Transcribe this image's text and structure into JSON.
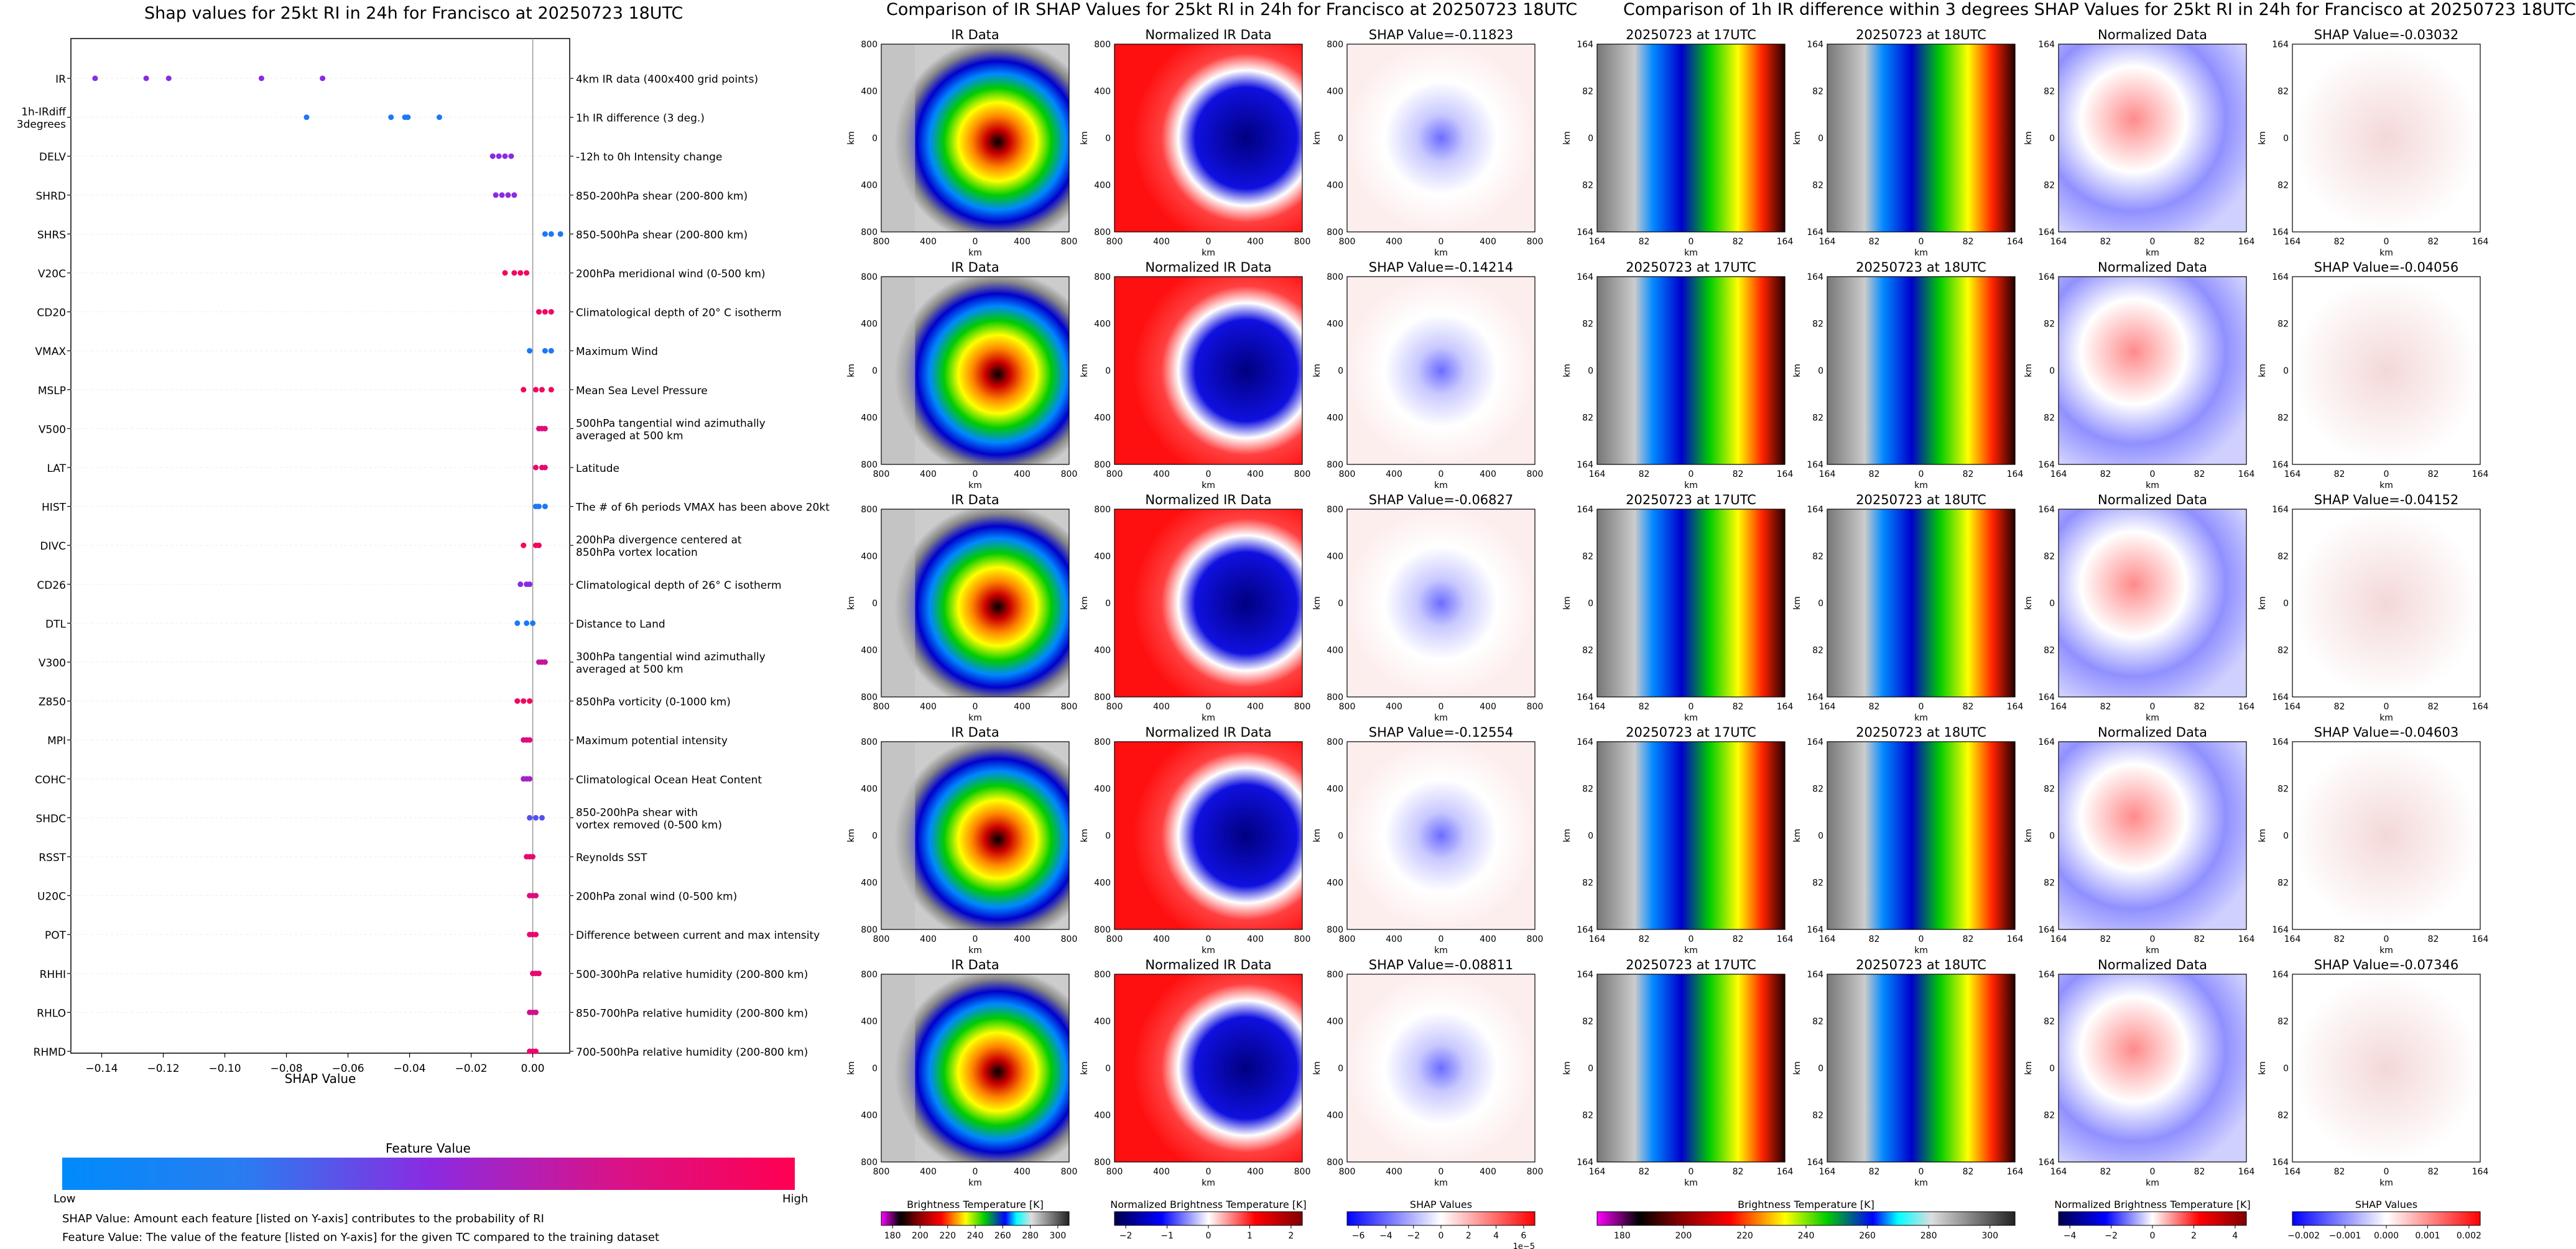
{
  "titles": {
    "shap": "Shap values for 25kt RI in 24h for Francisco at 20250723 18UTC",
    "ir": "Comparison of IR SHAP Values for 25kt RI in 24h for Francisco at 20250723 18UTC",
    "diff": "Comparison of 1h IR difference within 3 degrees SHAP Values for 25kt RI in 24h for Francisco at 20250723 18UTC"
  },
  "beeswarm": {
    "xlabel": "SHAP Value",
    "x_ticks": [
      "−0.14",
      "−0.12",
      "−0.10",
      "−0.08",
      "−0.06",
      "−0.04",
      "−0.02",
      "0.00"
    ],
    "features": [
      {
        "code": "IR",
        "desc": "4km IR data (400x400 grid points)"
      },
      {
        "code": "1h-IRdiff\n3degrees",
        "desc": "1h IR difference (3 deg.)"
      },
      {
        "code": "DELV",
        "desc": "-12h to 0h Intensity change"
      },
      {
        "code": "SHRD",
        "desc": "850-200hPa shear (200-800 km)"
      },
      {
        "code": "SHRS",
        "desc": "850-500hPa shear (200-800 km)"
      },
      {
        "code": "V20C",
        "desc": "200hPa meridional wind (0-500 km)"
      },
      {
        "code": "CD20",
        "desc": "Climatological depth of 20° C isotherm"
      },
      {
        "code": "VMAX",
        "desc": "Maximum Wind"
      },
      {
        "code": "MSLP",
        "desc": "Mean Sea Level Pressure"
      },
      {
        "code": "V500",
        "desc": "500hPa tangential wind azimuthally\naveraged at 500 km"
      },
      {
        "code": "LAT",
        "desc": "Latitude"
      },
      {
        "code": "HIST",
        "desc": "The # of 6h periods VMAX has been above 20kt"
      },
      {
        "code": "DIVC",
        "desc": "200hPa divergence centered at\n850hPa vortex location"
      },
      {
        "code": "CD26",
        "desc": "Climatological depth of 26° C isotherm"
      },
      {
        "code": "DTL",
        "desc": "Distance to Land"
      },
      {
        "code": "V300",
        "desc": "300hPa tangential wind azimuthally\naveraged at 500 km"
      },
      {
        "code": "Z850",
        "desc": "850hPa vorticity (0-1000 km)"
      },
      {
        "code": "MPI",
        "desc": "Maximum potential intensity"
      },
      {
        "code": "COHC",
        "desc": "Climatological Ocean Heat Content"
      },
      {
        "code": "SHDC",
        "desc": "850-200hPa shear with\nvortex removed (0-500 km)"
      },
      {
        "code": "RSST",
        "desc": "Reynolds SST"
      },
      {
        "code": "U20C",
        "desc": "200hPa zonal wind (0-500 km)"
      },
      {
        "code": "POT",
        "desc": "Difference between current and max intensity"
      },
      {
        "code": "RHHI",
        "desc": "500-300hPa relative humidity (200-800 km)"
      },
      {
        "code": "RHLO",
        "desc": "850-700hPa relative humidity (200-800 km)"
      },
      {
        "code": "RHMD",
        "desc": "700-500hPa relative humidity (200-800 km)"
      }
    ]
  },
  "feature_colorbar": {
    "title": "Feature Value",
    "low": "Low",
    "high": "High"
  },
  "notes": {
    "shap_value": "SHAP Value: Amount each feature [listed on Y-axis] contributes to the probability of RI",
    "feature_value": "Feature Value: The value of the feature [listed on Y-axis] for the given TC compared to the training dataset"
  },
  "ir_panels": {
    "col_titles": [
      "IR Data",
      "Normalized IR Data"
    ],
    "shap_prefix": "SHAP Value=",
    "shap_values": [
      "-0.11823",
      "-0.14214",
      "-0.06827",
      "-0.12554",
      "-0.08811"
    ],
    "axis_label": "km",
    "ticks": [
      "800",
      "400",
      "0",
      "400",
      "800"
    ]
  },
  "diff_panels": {
    "col_titles": [
      "20250723 at 17UTC",
      "20250723 at 18UTC",
      "Normalized Data"
    ],
    "shap_prefix": "SHAP Value=",
    "shap_values": [
      "-0.03032",
      "-0.04056",
      "-0.04152",
      "-0.04603",
      "-0.07346"
    ],
    "axis_label": "km",
    "ticks": [
      "164",
      "82",
      "0",
      "82",
      "164"
    ]
  },
  "colorbars": {
    "bt": {
      "label": "Brightness Temperature [K]",
      "ticks": [
        "180",
        "200",
        "220",
        "240",
        "260",
        "280",
        "300"
      ]
    },
    "nbt": {
      "label": "Normalized Brightness Temperature [K]",
      "ticks": [
        "−2",
        "−1",
        "0",
        "1",
        "2"
      ]
    },
    "shap": {
      "label": "SHAP Values",
      "ticks": [
        "−6",
        "−4",
        "−2",
        "0",
        "2",
        "4",
        "6"
      ],
      "offset": "1e−5"
    },
    "bt2": {
      "label": "Brightness Temperature [K]",
      "ticks": [
        "180",
        "200",
        "220",
        "240",
        "260",
        "280",
        "300"
      ]
    },
    "nbt2": {
      "label": "Normalized Brightness Temperature [K]",
      "ticks": [
        "−4",
        "−2",
        "0",
        "2",
        "4"
      ]
    },
    "shap2": {
      "label": "SHAP Values",
      "ticks": [
        "−0.002",
        "−0.001",
        "0.000",
        "0.001",
        "0.002"
      ]
    }
  },
  "chart_data": [
    {
      "type": "scatter",
      "title": "Shap values for 25kt RI in 24h for Francisco at 20250723 18UTC",
      "xlabel": "SHAP Value",
      "xlim": [
        -0.15,
        0.012
      ],
      "colors": {
        "low": "#008bfb",
        "mid": "#8a2be2",
        "high": "#ff0052"
      },
      "series": [
        {
          "feature": "IR",
          "x": [
            -0.14214,
            -0.12554,
            -0.11823,
            -0.08811,
            -0.06827
          ],
          "fv": [
            0.5,
            0.5,
            0.5,
            0.5,
            0.5
          ]
        },
        {
          "feature": "1h-IRdiff 3degrees",
          "x": [
            -0.07346,
            -0.04603,
            -0.04152,
            -0.04056,
            -0.03032
          ],
          "fv": [
            0.1,
            0.1,
            0.1,
            0.1,
            0.1
          ]
        },
        {
          "feature": "DELV",
          "x": [
            -0.013,
            -0.011,
            -0.009,
            -0.007
          ],
          "fv": [
            0.5,
            0.5,
            0.5,
            0.5
          ]
        },
        {
          "feature": "SHRD",
          "x": [
            -0.012,
            -0.01,
            -0.008,
            -0.006
          ],
          "fv": [
            0.5,
            0.5,
            0.5,
            0.5
          ]
        },
        {
          "feature": "SHRS",
          "x": [
            0.004,
            0.006,
            0.009
          ],
          "fv": [
            0.1,
            0.1,
            0.1
          ]
        },
        {
          "feature": "V20C",
          "x": [
            -0.009,
            -0.006,
            -0.004,
            -0.002
          ],
          "fv": [
            0.95,
            0.95,
            0.95,
            0.95
          ]
        },
        {
          "feature": "CD20",
          "x": [
            0.002,
            0.004,
            0.006
          ],
          "fv": [
            0.95,
            0.95,
            0.95
          ]
        },
        {
          "feature": "VMAX",
          "x": [
            -0.001,
            0.004,
            0.006
          ],
          "fv": [
            0.1,
            0.1,
            0.1
          ]
        },
        {
          "feature": "MSLP",
          "x": [
            -0.003,
            0.001,
            0.003,
            0.006
          ],
          "fv": [
            0.95,
            0.95,
            0.95,
            0.95
          ]
        },
        {
          "feature": "V500",
          "x": [
            0.002,
            0.003,
            0.004
          ],
          "fv": [
            0.85,
            0.85,
            0.85
          ]
        },
        {
          "feature": "LAT",
          "x": [
            0.001,
            0.003,
            0.004
          ],
          "fv": [
            0.9,
            0.9,
            0.9
          ]
        },
        {
          "feature": "HIST",
          "x": [
            0.001,
            0.002,
            0.004
          ],
          "fv": [
            0.1,
            0.1,
            0.1
          ]
        },
        {
          "feature": "DIVC",
          "x": [
            -0.003,
            0.001,
            0.002
          ],
          "fv": [
            0.95,
            0.95,
            0.95
          ]
        },
        {
          "feature": "CD26",
          "x": [
            -0.004,
            -0.002,
            -0.001
          ],
          "fv": [
            0.5,
            0.5,
            0.5
          ]
        },
        {
          "feature": "DTL",
          "x": [
            -0.005,
            -0.002,
            0.0
          ],
          "fv": [
            0.1,
            0.1,
            0.1
          ]
        },
        {
          "feature": "V300",
          "x": [
            0.002,
            0.003,
            0.004
          ],
          "fv": [
            0.75,
            0.75,
            0.75
          ]
        },
        {
          "feature": "Z850",
          "x": [
            -0.005,
            -0.003,
            -0.001
          ],
          "fv": [
            0.95,
            0.95,
            0.95
          ]
        },
        {
          "feature": "MPI",
          "x": [
            -0.003,
            -0.002,
            -0.001
          ],
          "fv": [
            0.85,
            0.85,
            0.85
          ]
        },
        {
          "feature": "COHC",
          "x": [
            -0.003,
            -0.002,
            -0.001
          ],
          "fv": [
            0.6,
            0.6,
            0.6
          ]
        },
        {
          "feature": "SHDC",
          "x": [
            -0.001,
            0.001,
            0.003
          ],
          "fv": [
            0.3,
            0.3,
            0.3
          ]
        },
        {
          "feature": "RSST",
          "x": [
            -0.002,
            -0.001,
            0.0
          ],
          "fv": [
            0.9,
            0.9,
            0.9
          ]
        },
        {
          "feature": "U20C",
          "x": [
            -0.001,
            0.0,
            0.001
          ],
          "fv": [
            0.85,
            0.85,
            0.85
          ]
        },
        {
          "feature": "POT",
          "x": [
            -0.001,
            0.0,
            0.001
          ],
          "fv": [
            0.9,
            0.9,
            0.9
          ]
        },
        {
          "feature": "RHHI",
          "x": [
            0.0,
            0.001,
            0.002
          ],
          "fv": [
            0.9,
            0.9,
            0.9
          ]
        },
        {
          "feature": "RHLO",
          "x": [
            -0.001,
            0.0,
            0.001
          ],
          "fv": [
            0.8,
            0.8,
            0.8
          ]
        },
        {
          "feature": "RHMD",
          "x": [
            -0.001,
            0.0,
            0.001
          ],
          "fv": [
            0.9,
            0.9,
            0.9
          ]
        }
      ]
    },
    {
      "type": "heatmap",
      "title": "Comparison of IR SHAP Values for 25kt RI in 24h for Francisco at 20250723 18UTC",
      "columns": [
        "IR Data",
        "Normalized IR Data",
        "SHAP"
      ],
      "shap_values": [
        -0.11823,
        -0.14214,
        -0.06827,
        -0.12554,
        -0.08811
      ],
      "xlim_km": [
        -800,
        800
      ],
      "ylim_km": [
        -800,
        800
      ]
    },
    {
      "type": "heatmap",
      "title": "Comparison of 1h IR difference within 3 degrees SHAP Values for 25kt RI in 24h for Francisco at 20250723 18UTC",
      "columns": [
        "20250723 at 17UTC",
        "20250723 at 18UTC",
        "Normalized Data",
        "SHAP"
      ],
      "shap_values": [
        -0.03032,
        -0.04056,
        -0.04152,
        -0.04603,
        -0.07346
      ],
      "xlim_km": [
        -164,
        164
      ],
      "ylim_km": [
        -164,
        164
      ]
    }
  ]
}
